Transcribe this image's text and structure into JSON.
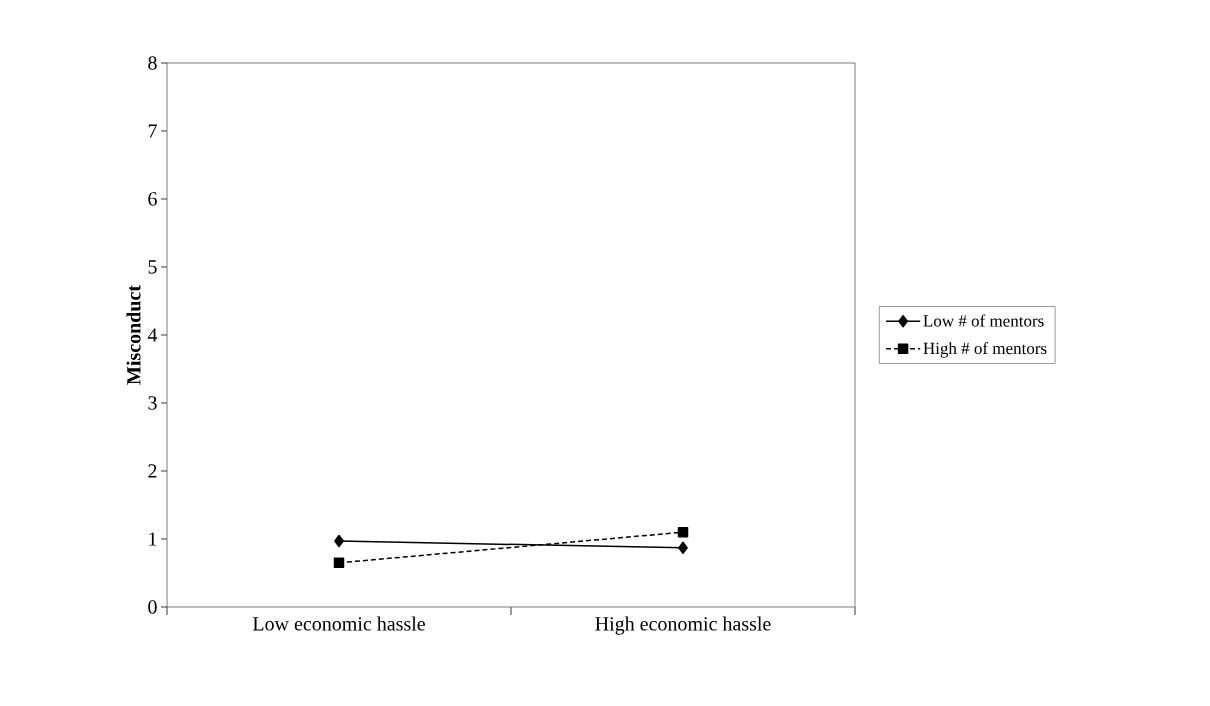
{
  "chart_data": {
    "type": "line",
    "ylabel": "Misconduct",
    "categories": [
      "Low economic hassle",
      "High economic hassle"
    ],
    "series": [
      {
        "name": "Low # of mentors",
        "color": "#000000",
        "values": [
          0.97,
          0.87
        ],
        "marker": "diamond",
        "line_style": "solid"
      },
      {
        "name": "High # of mentors",
        "color": "#000000",
        "values": [
          0.65,
          1.1
        ],
        "marker": "square",
        "line_style": "dashed"
      }
    ],
    "ylim": [
      0,
      8
    ],
    "yticks": [
      0,
      1,
      2,
      3,
      4,
      5,
      6,
      7,
      8
    ],
    "grid": false,
    "legend": "right"
  }
}
